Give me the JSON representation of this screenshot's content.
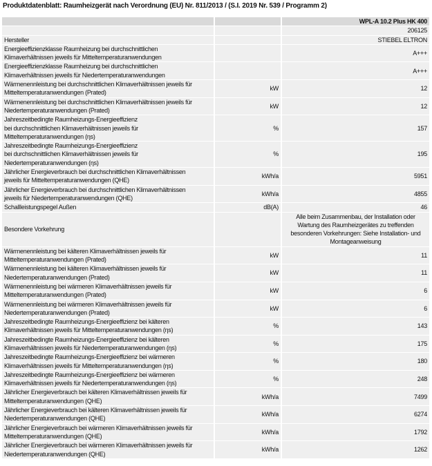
{
  "title": "Produktdatenblatt: Raumheizgerät nach Verordnung (EU) Nr. 811/2013 / (S.I. 2019 Nr. 539 / Programm 2)",
  "table": {
    "rows": [
      {
        "value": "WPL-A 10.2 Plus HK 400"
      },
      {
        "value": "206125"
      },
      {
        "label": "Hersteller",
        "value": "STIEBEL ELTRON"
      },
      {
        "label": "Energieeffizienzklasse Raumheizung bei durchschnittlichen\nKlimaverhältnissen jeweils für Mitteltemperaturanwendungen",
        "value": "A+++"
      },
      {
        "label": "Energieeffizienzklasse Raumheizung bei durchschnittlichen\nKlimaverhältnissen jeweils für Niedertemperaturanwendungen",
        "value": "A+++"
      },
      {
        "label": "Wärmenennleistung bei durchschnittlichen Klimaverhältnissen jeweils für\nMitteltemperaturanwendungen (Prated)",
        "unit": "kW",
        "value": "12"
      },
      {
        "label": "Wärmenennleistung bei durchschnittlichen Klimaverhältnissen jeweils für\nNiedertemperaturanwendungen (Prated)",
        "unit": "kW",
        "value": "12"
      },
      {
        "label": "Jahreszeitbedingte Raumheizungs-Energieeffizienz\nbei durchschnittlichen Klimaverhältnissen jeweils für\nMitteltemperaturanwendungen (ηs)",
        "unit": "%",
        "value": "157"
      },
      {
        "label": "Jahreszeitbedingte Raumheizungs-Energieeffizienz\nbei durchschnittlichen Klimaverhältnissen jeweils für\nNiedertemperaturanwendungen (ηs)",
        "unit": "%",
        "value": "195"
      },
      {
        "label": "Jährlicher Energieverbrauch bei durchschnittlichen Klimaverhältnissen\njeweils für Mitteltemperaturanwendungen (QHE)",
        "unit": "kWh/a",
        "value": "5951"
      },
      {
        "label": "Jährlicher Energieverbrauch bei durchschnittlichen Klimaverhältnissen\njeweils für Niedertemperaturanwendungen (QHE)",
        "unit": "kWh/a",
        "value": "4855"
      },
      {
        "label": "Schallleistungspegel Außen",
        "unit": "dB(A)",
        "value": "46"
      },
      {
        "label": "Besondere Vorkehrung",
        "value": "Alle beim Zusammenbau, der Installation oder\nWartung des Raumheizgerätes zu treffenden\nbesonderen Vorkehrungen: Siehe Installation- und\nMontageanweisung"
      },
      {
        "label": "Wärmenennleistung bei kälteren Klimaverhältnissen jeweils für\nMitteltemperaturanwendungen (Prated)",
        "unit": "kW",
        "value": "11"
      },
      {
        "label": "Wärmenennleistung bei kälteren Klimaverhältnissen jeweils für\nNiedertemperaturanwendungen (Prated)",
        "unit": "kW",
        "value": "11"
      },
      {
        "label": "Wärmenennleistung bei wärmeren Klimaverhältnissen jeweils für\nMitteltemperaturanwendungen (Prated)",
        "unit": "kW",
        "value": "6"
      },
      {
        "label": "Wärmenennleistung bei wärmeren Klimaverhältnissen jeweils für\nNiedertemperaturanwendungen (Prated)",
        "unit": "kW",
        "value": "6"
      },
      {
        "label": "Jahreszeitbedingte Raumheizungs-Energieeffizienz bei kälteren\nKlimaverhältnissen jeweils für Mitteltemperaturanwendungen (ηs)",
        "unit": "%",
        "value": "143"
      },
      {
        "label": "Jahreszeitbedingte Raumheizungs-Energieeffizienz bei kälteren\nKlimaverhältnissen jeweils für Niedertemperaturanwendungen (ηs)",
        "unit": "%",
        "value": "175"
      },
      {
        "label": "Jahreszeitbedingte Raumheizungs-Energieeffizienz bei wärmeren\nKlimaverhältnissen jeweils für Mitteltemperaturanwendungen (ηs)",
        "unit": "%",
        "value": "180"
      },
      {
        "label": "Jahreszeitbedingte Raumheizungs-Energieeffizienz bei wärmeren\nKlimaverhältnissen jeweils für Niedertemperaturanwendungen (ηs)",
        "unit": "%",
        "value": "248"
      },
      {
        "label": "Jährlicher Energieverbrauch bei kälteren Klimaverhältnissen jeweils für\nMitteltemperaturanwendungen (QHE)",
        "unit": "kWh/a",
        "value": "7499"
      },
      {
        "label": "Jährlicher Energieverbrauch bei kälteren Klimaverhältnissen jeweils für\nNiedertemperaturanwendungen (QHE)",
        "unit": "kWh/a",
        "value": "6274"
      },
      {
        "label": "Jährlicher Energieverbrauch bei wärmeren Klimaverhältnissen jeweils für\nMitteltemperaturanwendungen (QHE)",
        "unit": "kWh/a",
        "value": "1792"
      },
      {
        "label": "Jährlicher Energieverbrauch bei wärmeren Klimaverhältnissen jeweils für\nNiedertemperaturanwendungen (QHE)",
        "unit": "kWh/a",
        "value": "1262"
      }
    ]
  }
}
